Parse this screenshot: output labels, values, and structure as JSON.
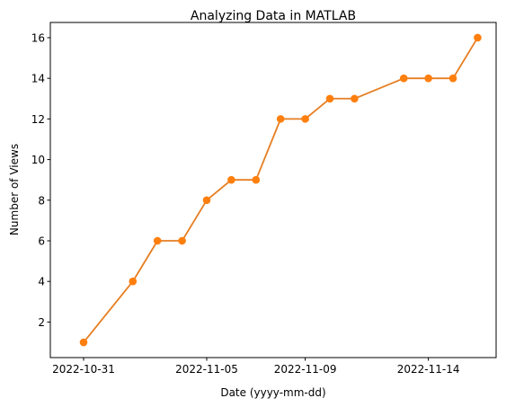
{
  "chart_data": {
    "type": "line",
    "title": "Analyzing Data in MATLAB",
    "xlabel": "Date (yyyy-mm-dd)",
    "ylabel": "Number of Views",
    "x": [
      "2022-10-31",
      "2022-11-02",
      "2022-11-03",
      "2022-11-04",
      "2022-11-05",
      "2022-11-06",
      "2022-11-07",
      "2022-11-08",
      "2022-11-09",
      "2022-11-10",
      "2022-11-11",
      "2022-11-13",
      "2022-11-14",
      "2022-11-15",
      "2022-11-16"
    ],
    "x_offsets_days": [
      0,
      2,
      3,
      4,
      5,
      6,
      7,
      8,
      9,
      10,
      11,
      13,
      14,
      15,
      16
    ],
    "series": [
      {
        "name": "Views",
        "values": [
          1,
          4,
          6,
          6,
          8,
          9,
          9,
          12,
          12,
          13,
          13,
          14,
          14,
          14,
          16
        ]
      }
    ],
    "xticks": [
      "2022-10-31",
      "2022-11-05",
      "2022-11-09",
      "2022-11-14"
    ],
    "xtick_offsets_days": [
      0,
      5,
      9,
      14
    ],
    "yticks": [
      2,
      4,
      6,
      8,
      10,
      12,
      14,
      16
    ],
    "xlim_days": [
      -1.35,
      16.75
    ],
    "ylim": [
      0.25,
      16.75
    ],
    "grid": false,
    "line_color": "#e67e22",
    "marker_color": "#ff7f0e"
  }
}
